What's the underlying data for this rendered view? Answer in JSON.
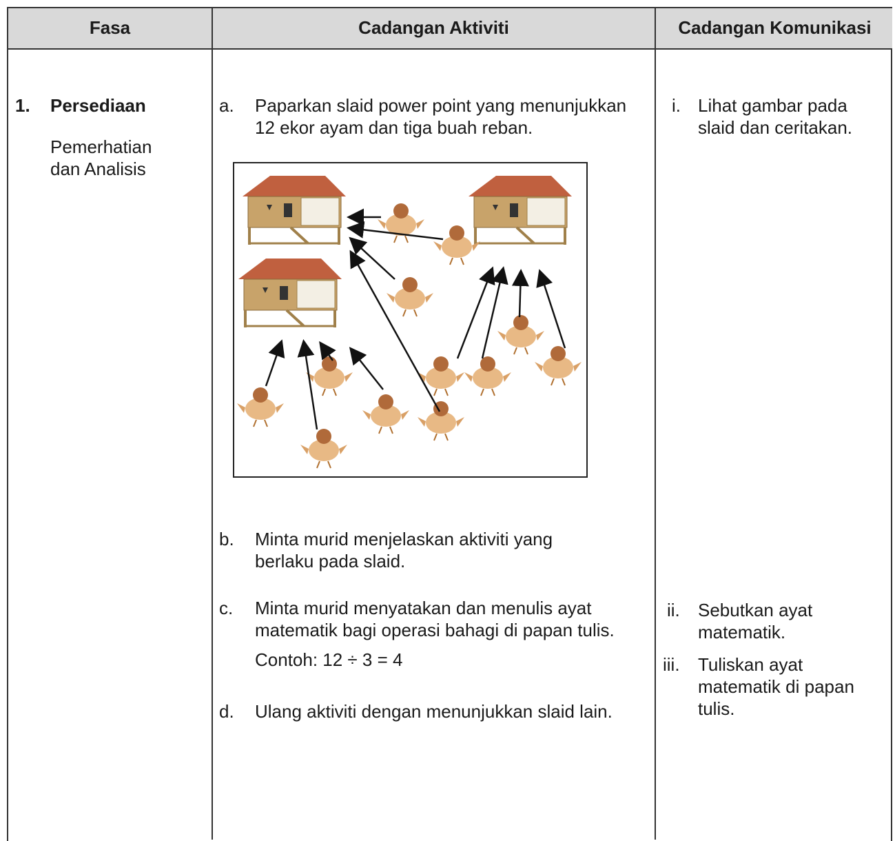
{
  "table": {
    "headers": [
      "Fasa",
      "Cadangan Aktiviti",
      "Cadangan Komunikasi"
    ],
    "phase": {
      "number": "1.",
      "title": "Persediaan",
      "subtitle": "Pemerhatian dan Analisis"
    },
    "activities": [
      {
        "marker": "a.",
        "text": "Paparkan slaid power point yang menunjukkan 12 ekor ayam dan tiga buah reban."
      },
      {
        "marker": "b.",
        "text": "Minta murid menjelaskan aktiviti yang berlaku pada slaid."
      },
      {
        "marker": "c.",
        "text": "Minta murid menyatakan dan menulis ayat matematik bagi operasi bahagi di papan tulis."
      },
      {
        "marker": "d.",
        "text": "Ulang aktiviti dengan menunjukkan slaid lain."
      }
    ],
    "example": "Contoh: 12 ÷ 3 = 4",
    "communication": [
      {
        "marker": "i.",
        "text": "Lihat gambar pada slaid dan ceritakan."
      },
      {
        "marker": "ii.",
        "text": "Sebutkan ayat matematik."
      },
      {
        "marker": "iii.",
        "text": "Tuliskan ayat matematik di papan tulis."
      }
    ]
  }
}
